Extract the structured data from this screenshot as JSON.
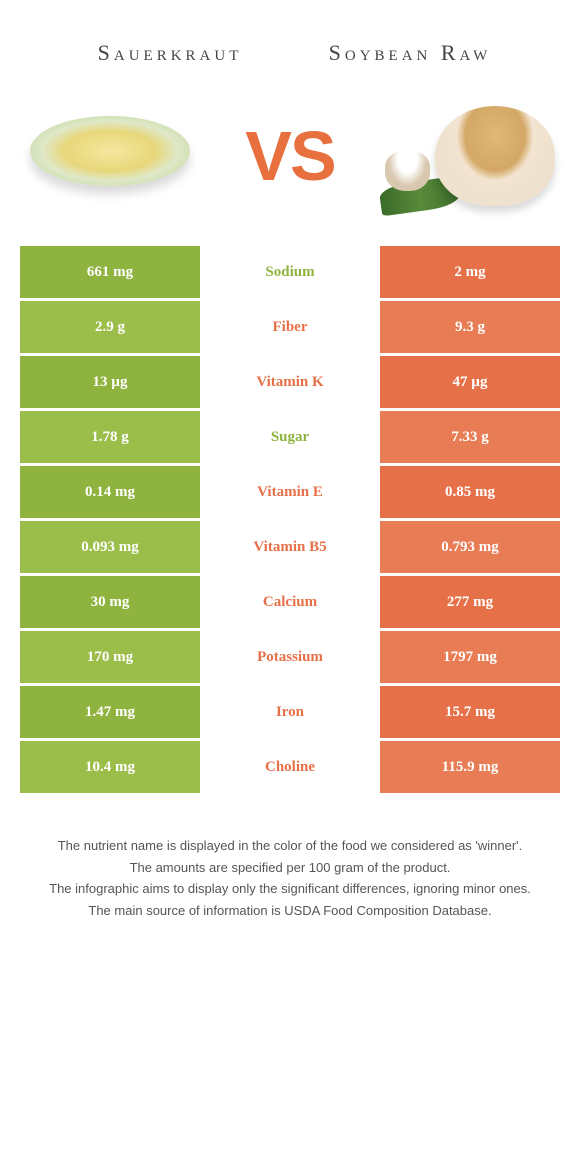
{
  "food1": {
    "name": "Sauerkraut",
    "color": "#8fb33f",
    "altColor": "#9bbd4a"
  },
  "food2": {
    "name": "Soybean Raw",
    "color": "#e67048",
    "altColor": "#e87c55"
  },
  "vs": "VS",
  "rows": [
    {
      "left": "661 mg",
      "label": "Sodium",
      "right": "2 mg",
      "winner": "left"
    },
    {
      "left": "2.9 g",
      "label": "Fiber",
      "right": "9.3 g",
      "winner": "right"
    },
    {
      "left": "13 µg",
      "label": "Vitamin K",
      "right": "47 µg",
      "winner": "right"
    },
    {
      "left": "1.78 g",
      "label": "Sugar",
      "right": "7.33 g",
      "winner": "left"
    },
    {
      "left": "0.14 mg",
      "label": "Vitamin E",
      "right": "0.85 mg",
      "winner": "right"
    },
    {
      "left": "0.093 mg",
      "label": "Vitamin B5",
      "right": "0.793 mg",
      "winner": "right"
    },
    {
      "left": "30 mg",
      "label": "Calcium",
      "right": "277 mg",
      "winner": "right"
    },
    {
      "left": "170 mg",
      "label": "Potassium",
      "right": "1797 mg",
      "winner": "right"
    },
    {
      "left": "1.47 mg",
      "label": "Iron",
      "right": "15.7 mg",
      "winner": "right"
    },
    {
      "left": "10.4 mg",
      "label": "Choline",
      "right": "115.9 mg",
      "winner": "right"
    }
  ],
  "footer": [
    "The nutrient name is displayed in the color of the food we considered as 'winner'.",
    "The amounts are specified per 100 gram of the product.",
    "The infographic aims to display only the significant differences, ignoring minor ones.",
    "The main source of information is USDA Food Composition Database."
  ]
}
